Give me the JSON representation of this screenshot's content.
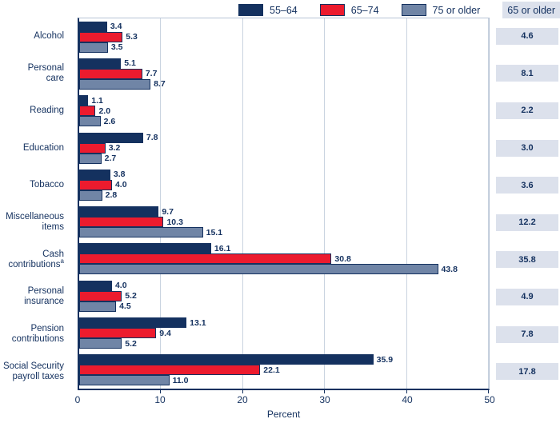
{
  "colors": {
    "navy": "#14315f",
    "red": "#ec1b2e",
    "slate": "#7085a6",
    "box_bg": "#dce1ec",
    "grid": "#c9d3e0",
    "plot_border_light": "#b7c4d6"
  },
  "legend": {
    "items": [
      {
        "label": "55–64",
        "color": "navy"
      },
      {
        "label": "65–74",
        "color": "red"
      },
      {
        "label": "75 or older",
        "color": "slate"
      }
    ],
    "header": "65 or older"
  },
  "chart_data": {
    "type": "bar",
    "orientation": "horizontal",
    "title": "",
    "xlabel": "Percent",
    "xlim": [
      0,
      50
    ],
    "xticks": [
      0,
      10,
      20,
      30,
      40,
      50
    ],
    "grid": true,
    "legend_position": "top-right",
    "categories": [
      {
        "label": "Alcohol",
        "lines": [
          "Alcohol"
        ],
        "sup": ""
      },
      {
        "label": "Personal care",
        "lines": [
          "Personal",
          "care"
        ],
        "sup": ""
      },
      {
        "label": "Reading",
        "lines": [
          "Reading"
        ],
        "sup": ""
      },
      {
        "label": "Education",
        "lines": [
          "Education"
        ],
        "sup": ""
      },
      {
        "label": "Tobacco",
        "lines": [
          "Tobacco"
        ],
        "sup": ""
      },
      {
        "label": "Miscellaneous items",
        "lines": [
          "Miscellaneous",
          "items"
        ],
        "sup": ""
      },
      {
        "label": "Cash contributions",
        "lines": [
          "Cash",
          "contributions"
        ],
        "sup": "a"
      },
      {
        "label": "Personal insurance",
        "lines": [
          "Personal",
          "insurance"
        ],
        "sup": ""
      },
      {
        "label": "Pension contributions",
        "lines": [
          "Pension",
          "contributions"
        ],
        "sup": ""
      },
      {
        "label": "Social Security payroll taxes",
        "lines": [
          "Social Security",
          "payroll taxes"
        ],
        "sup": ""
      }
    ],
    "series": [
      {
        "name": "55–64",
        "color": "navy",
        "values": [
          3.4,
          5.1,
          1.1,
          7.8,
          3.8,
          9.7,
          16.1,
          4.0,
          13.1,
          35.9
        ]
      },
      {
        "name": "65–74",
        "color": "red",
        "values": [
          5.3,
          7.7,
          2.0,
          3.2,
          4.0,
          10.3,
          30.8,
          5.2,
          9.4,
          22.1
        ]
      },
      {
        "name": "75 or older",
        "color": "slate",
        "values": [
          3.5,
          8.7,
          2.6,
          2.7,
          2.8,
          15.1,
          43.8,
          4.5,
          5.2,
          11.0
        ]
      }
    ],
    "right_column": {
      "header": "65 or older",
      "values": [
        4.6,
        8.1,
        2.2,
        3.0,
        3.6,
        12.2,
        35.8,
        4.9,
        7.8,
        17.8
      ]
    }
  }
}
